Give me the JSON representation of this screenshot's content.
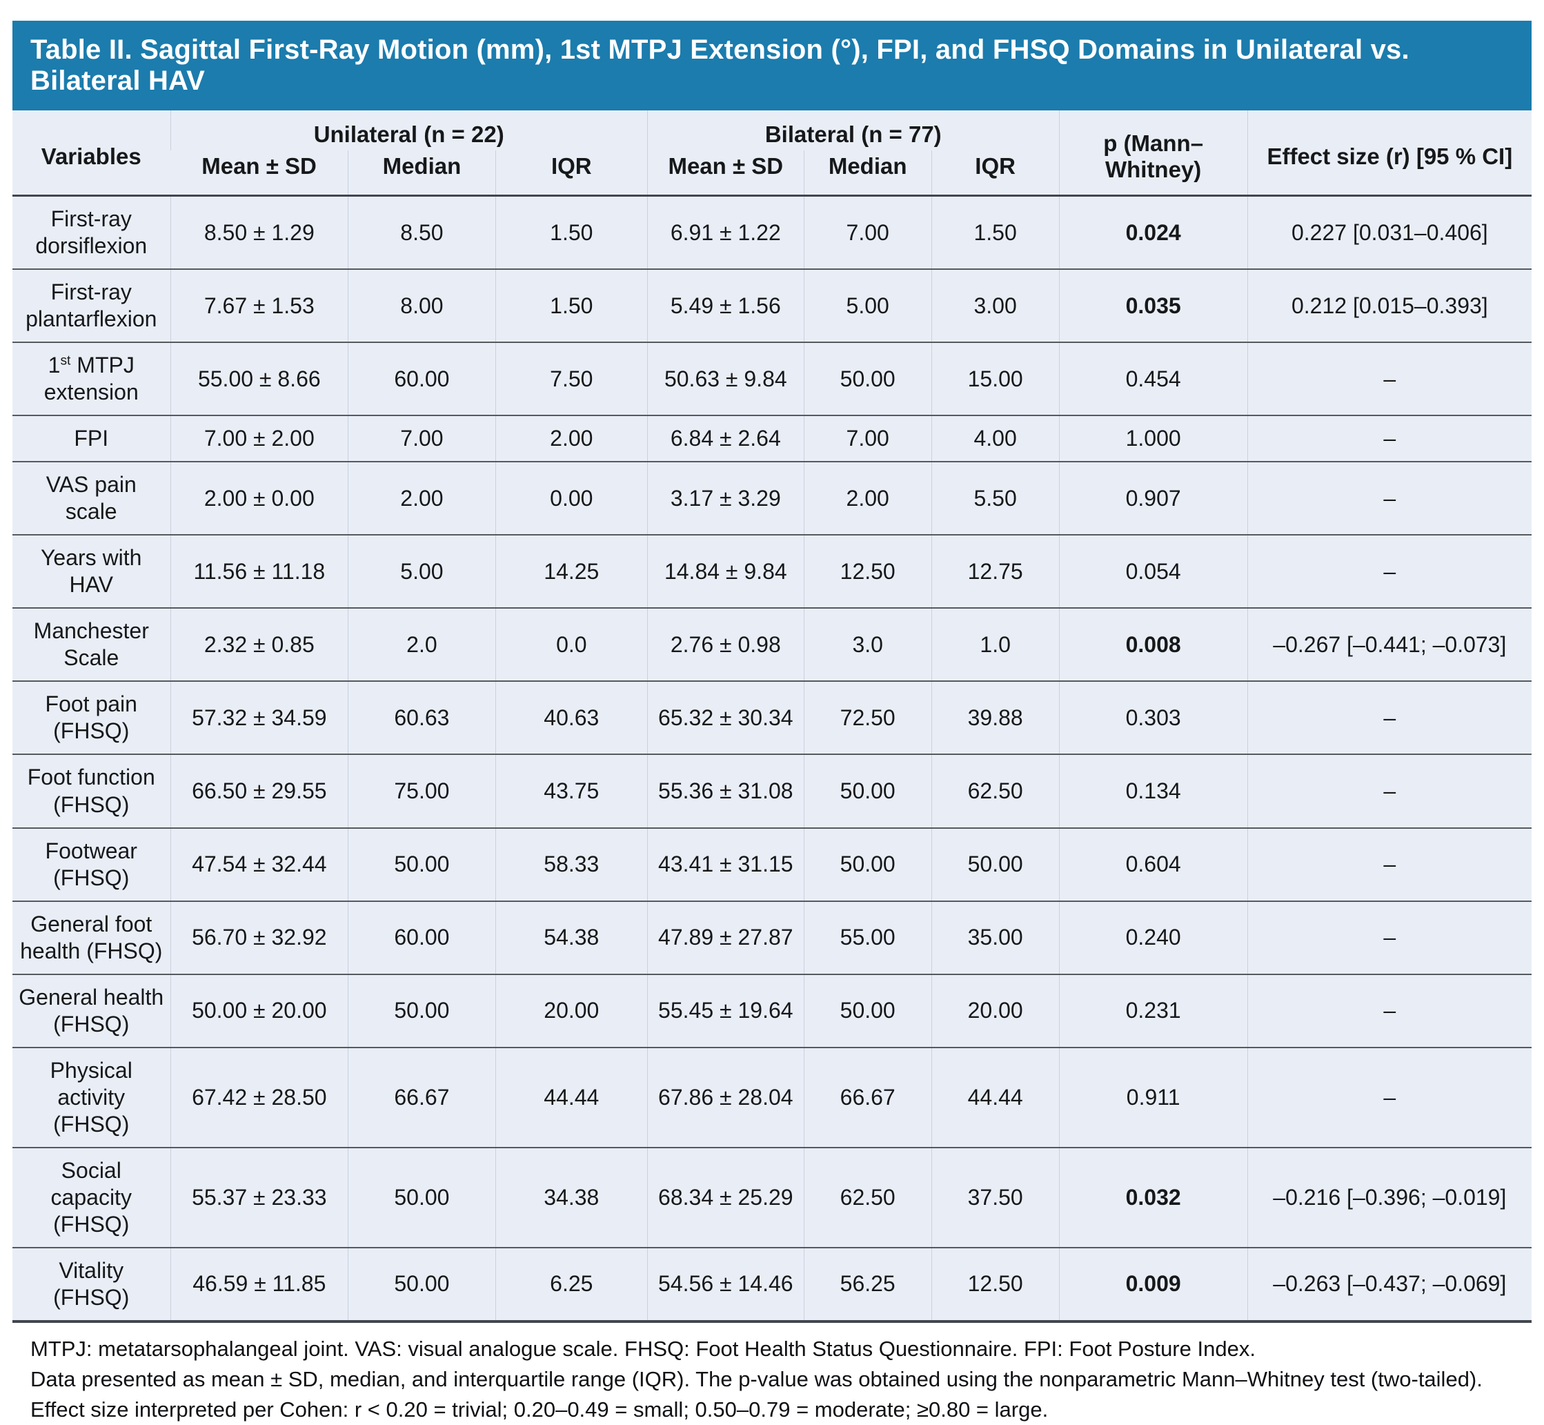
{
  "title": "Table II. Sagittal First-Ray Motion (mm), 1st MTPJ Extension (°), FPI, and FHSQ Domains in Unilateral vs. Bilateral HAV",
  "colors": {
    "title_bar_bg": "#1b7cad",
    "title_bar_text": "#ffffff",
    "table_bg": "#e9eef6",
    "row_border": "#555960",
    "column_border": "#c9d1df",
    "text": "#17181a"
  },
  "table": {
    "header": {
      "variables": "Variables",
      "unilateral": "Unilateral (n = 22)",
      "bilateral": "Bilateral (n = 77)",
      "mean_sd": "Mean ± SD",
      "median": "Median",
      "iqr": "IQR",
      "p": "p (Mann–Whitney)",
      "effect": "Effect size (r) [95 % CI]"
    },
    "rows": [
      {
        "variable": "First-ray dorsiflexion",
        "uni_mean_sd": "8.50 ± 1.29",
        "uni_median": "8.50",
        "uni_iqr": "1.50",
        "bil_mean_sd": "6.91 ± 1.22",
        "bil_median": "7.00",
        "bil_iqr": "1.50",
        "p": "0.024",
        "p_bold": true,
        "effect": "0.227 [0.031–0.406]"
      },
      {
        "variable": "First-ray plantarflexion",
        "uni_mean_sd": "7.67 ± 1.53",
        "uni_median": "8.00",
        "uni_iqr": "1.50",
        "bil_mean_sd": "5.49 ± 1.56",
        "bil_median": "5.00",
        "bil_iqr": "3.00",
        "p": "0.035",
        "p_bold": true,
        "effect": "0.212 [0.015–0.393]"
      },
      {
        "variable": "1^st^ MTPJ extension",
        "uni_mean_sd": "55.00 ± 8.66",
        "uni_median": "60.00",
        "uni_iqr": "7.50",
        "bil_mean_sd": "50.63 ± 9.84",
        "bil_median": "50.00",
        "bil_iqr": "15.00",
        "p": "0.454",
        "p_bold": false,
        "effect": "–"
      },
      {
        "variable": "FPI",
        "uni_mean_sd": "7.00 ± 2.00",
        "uni_median": "7.00",
        "uni_iqr": "2.00",
        "bil_mean_sd": "6.84 ± 2.64",
        "bil_median": "7.00",
        "bil_iqr": "4.00",
        "p": "1.000",
        "p_bold": false,
        "effect": "–"
      },
      {
        "variable": "VAS pain scale",
        "uni_mean_sd": "2.00 ± 0.00",
        "uni_median": "2.00",
        "uni_iqr": "0.00",
        "bil_mean_sd": "3.17 ± 3.29",
        "bil_median": "2.00",
        "bil_iqr": "5.50",
        "p": "0.907",
        "p_bold": false,
        "effect": "–"
      },
      {
        "variable": "Years with HAV",
        "uni_mean_sd": "11.56 ± 11.18",
        "uni_median": "5.00",
        "uni_iqr": "14.25",
        "bil_mean_sd": "14.84 ± 9.84",
        "bil_median": "12.50",
        "bil_iqr": "12.75",
        "p": "0.054",
        "p_bold": false,
        "effect": "–"
      },
      {
        "variable": "Manchester Scale",
        "uni_mean_sd": "2.32 ± 0.85",
        "uni_median": "2.0",
        "uni_iqr": "0.0",
        "bil_mean_sd": "2.76 ± 0.98",
        "bil_median": "3.0",
        "bil_iqr": "1.0",
        "p": "0.008",
        "p_bold": true,
        "effect": "–0.267 [–0.441; –0.073]"
      },
      {
        "variable": "Foot pain (FHSQ)",
        "uni_mean_sd": "57.32 ± 34.59",
        "uni_median": "60.63",
        "uni_iqr": "40.63",
        "bil_mean_sd": "65.32 ± 30.34",
        "bil_median": "72.50",
        "bil_iqr": "39.88",
        "p": "0.303",
        "p_bold": false,
        "effect": "–"
      },
      {
        "variable": "Foot function (FHSQ)",
        "uni_mean_sd": "66.50 ± 29.55",
        "uni_median": "75.00",
        "uni_iqr": "43.75",
        "bil_mean_sd": "55.36 ± 31.08",
        "bil_median": "50.00",
        "bil_iqr": "62.50",
        "p": "0.134",
        "p_bold": false,
        "effect": "–"
      },
      {
        "variable": "Footwear (FHSQ)",
        "uni_mean_sd": "47.54 ± 32.44",
        "uni_median": "50.00",
        "uni_iqr": "58.33",
        "bil_mean_sd": "43.41 ± 31.15",
        "bil_median": "50.00",
        "bil_iqr": "50.00",
        "p": "0.604",
        "p_bold": false,
        "effect": "–"
      },
      {
        "variable": "General foot health (FHSQ)",
        "uni_mean_sd": "56.70 ± 32.92",
        "uni_median": "60.00",
        "uni_iqr": "54.38",
        "bil_mean_sd": "47.89 ± 27.87",
        "bil_median": "55.00",
        "bil_iqr": "35.00",
        "p": "0.240",
        "p_bold": false,
        "effect": "–"
      },
      {
        "variable": "General health (FHSQ)",
        "uni_mean_sd": "50.00 ± 20.00",
        "uni_median": "50.00",
        "uni_iqr": "20.00",
        "bil_mean_sd": "55.45 ± 19.64",
        "bil_median": "50.00",
        "bil_iqr": "20.00",
        "p": "0.231",
        "p_bold": false,
        "effect": "–"
      },
      {
        "variable": "Physical activity (FHSQ)",
        "uni_mean_sd": "67.42 ± 28.50",
        "uni_median": "66.67",
        "uni_iqr": "44.44",
        "bil_mean_sd": "67.86 ± 28.04",
        "bil_median": "66.67",
        "bil_iqr": "44.44",
        "p": "0.911",
        "p_bold": false,
        "effect": "–"
      },
      {
        "variable": "Social capacity (FHSQ)",
        "uni_mean_sd": "55.37 ± 23.33",
        "uni_median": "50.00",
        "uni_iqr": "34.38",
        "bil_mean_sd": "68.34 ± 25.29",
        "bil_median": "62.50",
        "bil_iqr": "37.50",
        "p": "0.032",
        "p_bold": true,
        "effect": "–0.216 [–0.396; –0.019]"
      },
      {
        "variable": "Vitality (FHSQ)",
        "uni_mean_sd": "46.59 ± 11.85",
        "uni_median": "50.00",
        "uni_iqr": "6.25",
        "bil_mean_sd": "54.56 ± 14.46",
        "bil_median": "56.25",
        "bil_iqr": "12.50",
        "p": "0.009",
        "p_bold": true,
        "effect": "–0.263 [–0.437; –0.069]"
      }
    ]
  },
  "footnotes": {
    "line1": "MTPJ: metatarsophalangeal joint. VAS: visual analogue scale. FHSQ: Foot Health Status Questionnaire. FPI: Foot Posture Index.",
    "line2": "Data presented as mean ± SD, median, and interquartile range (IQR). The p-value was obtained using the nonparametric Mann–Whitney test (two-tailed). Effect size interpreted per Cohen: r < 0.20 = trivial; 0.20–0.49 = small; 0.50–0.79 = moderate; ≥0.80 = large."
  }
}
